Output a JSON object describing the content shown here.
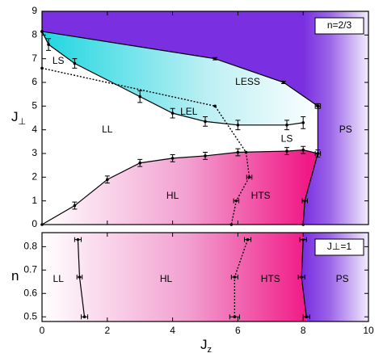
{
  "chart_data": [
    {
      "type": "line",
      "xlim": [
        0,
        10
      ],
      "ylim": [
        0,
        9
      ],
      "xticks": [
        0,
        2,
        4,
        6,
        8,
        10
      ],
      "yticks": [
        0,
        1,
        2,
        3,
        4,
        5,
        6,
        7,
        8,
        9
      ],
      "ylabel": "J",
      "ylabel_subscript": "⊥",
      "box_label": "n=2/3",
      "annotations": [
        {
          "text": "LS",
          "x": 0.5,
          "y": 6.9
        },
        {
          "text": "LESS",
          "x": 6.3,
          "y": 6.0
        },
        {
          "text": "LEL",
          "x": 4.5,
          "y": 4.75
        },
        {
          "text": "LL",
          "x": 2.0,
          "y": 4.0
        },
        {
          "text": "LS",
          "x": 7.5,
          "y": 3.6
        },
        {
          "text": "PS",
          "x": 9.3,
          "y": 4.0
        },
        {
          "text": "HL",
          "x": 4.0,
          "y": 1.2
        },
        {
          "text": "HTS",
          "x": 6.7,
          "y": 1.2
        }
      ],
      "series": [
        {
          "color": "#000000",
          "style": "solid",
          "x": [
            0,
            5.3,
            7.4,
            8.45
          ],
          "values": [
            8.15,
            7.0,
            6.0,
            5.0
          ],
          "yerr": [
            null,
            0.05,
            0.05,
            0.1
          ]
        },
        {
          "color": "#000000",
          "style": "solid",
          "x": [
            0,
            0.2,
            1,
            3,
            4,
            5,
            6,
            7.5,
            8
          ],
          "values": [
            8.15,
            7.6,
            6.8,
            5.4,
            4.7,
            4.35,
            4.2,
            4.2,
            4.3
          ],
          "yerr": [
            null,
            0.25,
            0.2,
            0.25,
            0.2,
            0.2,
            0.2,
            0.2,
            0.25
          ]
        },
        {
          "color": "#000000",
          "style": "dotted",
          "x": [
            0,
            5.3,
            6.25,
            6.35,
            5.95,
            5.8
          ],
          "values": [
            6.6,
            5.0,
            3.05,
            2.0,
            1.0,
            0
          ],
          "xerr": [
            null,
            null,
            null,
            0.08,
            0.08,
            null
          ]
        },
        {
          "color": "#000000",
          "style": "solid",
          "x": [
            0,
            1,
            2,
            3,
            4,
            5,
            6,
            7.5,
            8,
            8.45
          ],
          "values": [
            0,
            0.8,
            1.9,
            2.6,
            2.8,
            2.9,
            3.05,
            3.1,
            3.15,
            3.0
          ],
          "yerr": [
            null,
            0.15,
            0.15,
            0.15,
            0.15,
            0.15,
            0.15,
            0.15,
            0.15,
            0.15
          ]
        },
        {
          "color": "#000000",
          "style": "solid",
          "x": [
            8,
            8.05,
            8.45,
            8.45
          ],
          "values": [
            0,
            1.0,
            3.0,
            5.0
          ],
          "xerr": [
            null,
            0.08,
            0.08,
            0.08
          ]
        }
      ]
    },
    {
      "type": "line",
      "xlim": [
        0,
        10
      ],
      "ylim": [
        0.48,
        0.86
      ],
      "xticks": [
        0,
        2,
        4,
        6,
        8,
        10
      ],
      "yticks": [
        0.5,
        0.6,
        0.7,
        0.8
      ],
      "xlabel": "J",
      "xlabel_subscript": "z",
      "ylabel": "n",
      "box_label": "J⊥=1",
      "annotations": [
        {
          "text": "LL",
          "x": 0.5,
          "y": 0.66
        },
        {
          "text": "HL",
          "x": 3.8,
          "y": 0.66
        },
        {
          "text": "HTS",
          "x": 7.0,
          "y": 0.66
        },
        {
          "text": "PS",
          "x": 9.2,
          "y": 0.66
        }
      ],
      "series": [
        {
          "color": "#000000",
          "style": "solid",
          "x": [
            1.1,
            1.15,
            1.3
          ],
          "values": [
            0.83,
            0.67,
            0.5
          ],
          "xerr": [
            0.1,
            0.08,
            0.1
          ]
        },
        {
          "color": "#000000",
          "style": "dotted",
          "x": [
            6.3,
            5.9,
            5.9
          ],
          "values": [
            0.83,
            0.67,
            0.5
          ],
          "xerr": [
            0.1,
            0.1,
            0.15
          ]
        },
        {
          "color": "#000000",
          "style": "solid",
          "x": [
            8,
            7.95,
            8.1
          ],
          "values": [
            0.83,
            0.67,
            0.5
          ],
          "xerr": [
            0.1,
            0.1,
            0.1
          ]
        }
      ]
    }
  ]
}
